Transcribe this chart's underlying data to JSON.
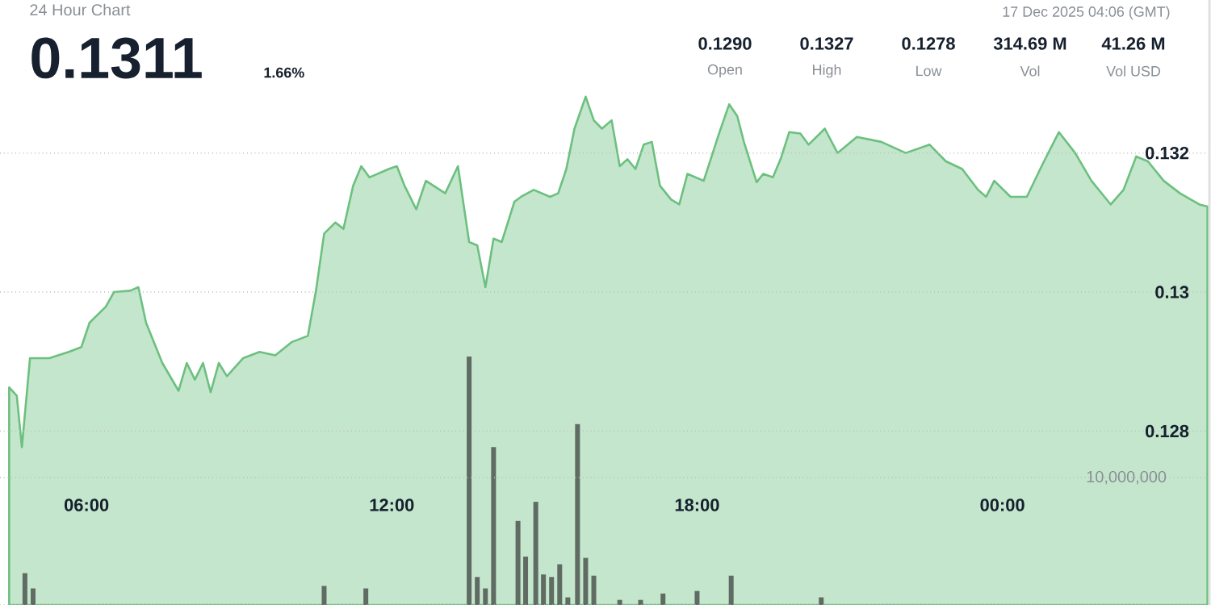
{
  "chart_data": {
    "type": "area",
    "title": "24 Hour Chart",
    "subtitle": "0.1311",
    "annotations": [
      "1.66%",
      "17 Dec 2025 04:06 (GMT)",
      "0.1290",
      "Open",
      "0.1327",
      "High",
      "0.1278",
      "Low",
      "314.69 M",
      "Vol",
      "41.26 M",
      "Vol USD"
    ],
    "xlim": [
      4.3,
      28.1
    ],
    "xticks": [
      {
        "value": 6,
        "label": "06:00"
      },
      {
        "value": 12,
        "label": "12:00"
      },
      {
        "value": 18,
        "label": "18:00"
      },
      {
        "value": 24,
        "label": "00:00"
      }
    ],
    "ylim": [
      0.1255,
      0.1342
    ],
    "yticks": [
      0.128,
      0.13,
      0.132
    ],
    "y2lim": [
      0,
      47500000
    ],
    "y2ticks": [
      {
        "value": 0,
        "label": null
      },
      {
        "value": 10000000,
        "label": "10,000,000"
      }
    ],
    "grid": "y",
    "series": [
      {
        "color": "#6cc07f",
        "x": [
          4.48,
          4.63,
          4.73,
          4.89,
          5.27,
          5.65,
          5.9,
          6.06,
          6.38,
          6.54,
          6.86,
          7.02,
          7.17,
          7.49,
          7.81,
          7.97,
          8.13,
          8.29,
          8.44,
          8.6,
          8.76,
          9.08,
          9.4,
          9.71,
          10.03,
          10.35,
          10.51,
          10.67,
          10.89,
          11.05,
          11.24,
          11.4,
          11.56,
          11.94,
          12.1,
          12.25,
          12.48,
          12.67,
          13.05,
          13.3,
          13.52,
          13.68,
          13.84,
          14.0,
          14.16,
          14.41,
          14.54,
          14.79,
          15.11,
          15.27,
          15.43,
          15.59,
          15.81,
          15.97,
          16.13,
          16.32,
          16.48,
          16.63,
          16.79,
          16.95,
          17.11,
          17.27,
          17.49,
          17.65,
          17.81,
          18.13,
          18.44,
          18.63,
          18.79,
          18.92,
          19.17,
          19.3,
          19.49,
          19.65,
          19.81,
          20.03,
          20.19,
          20.51,
          20.76,
          21.14,
          21.62,
          22.1,
          22.57,
          22.89,
          23.21,
          23.52,
          23.68,
          23.84,
          24.16,
          24.48,
          24.79,
          25.11,
          25.43,
          25.75,
          26.13,
          26.38,
          26.63,
          26.86,
          27.17,
          27.49,
          27.87,
          28.03
        ],
        "values": [
          0.12863,
          0.12851,
          0.12777,
          0.12905,
          0.12905,
          0.12914,
          0.12921,
          0.12956,
          0.12979,
          0.13,
          0.13002,
          0.13007,
          0.12956,
          0.12898,
          0.12858,
          0.12898,
          0.12874,
          0.12898,
          0.12856,
          0.12898,
          0.12879,
          0.12905,
          0.12914,
          0.12909,
          0.12928,
          0.12937,
          0.13002,
          0.13084,
          0.131,
          0.13091,
          0.13153,
          0.13181,
          0.13165,
          0.13177,
          0.13181,
          0.13153,
          0.13119,
          0.1316,
          0.13142,
          0.13181,
          0.13072,
          0.13067,
          0.13007,
          0.13077,
          0.13072,
          0.1313,
          0.13137,
          0.13147,
          0.13137,
          0.13142,
          0.13177,
          0.13235,
          0.13281,
          0.13247,
          0.13235,
          0.13247,
          0.13181,
          0.13191,
          0.13177,
          0.13212,
          0.13216,
          0.13153,
          0.13133,
          0.13126,
          0.1317,
          0.1316,
          0.1323,
          0.1327,
          0.13253,
          0.13216,
          0.13158,
          0.1317,
          0.13165,
          0.13193,
          0.1323,
          0.13228,
          0.13212,
          0.13235,
          0.132,
          0.13223,
          0.13216,
          0.132,
          0.13212,
          0.13188,
          0.13177,
          0.13147,
          0.13137,
          0.1316,
          0.13137,
          0.13137,
          0.13184,
          0.1323,
          0.132,
          0.1316,
          0.13126,
          0.13147,
          0.13195,
          0.13188,
          0.1316,
          0.13142,
          0.13126,
          0.13123
        ]
      },
      {
        "type": "bar",
        "axis": "y2",
        "color": "#5f6b63",
        "x": [
          4.79,
          4.95,
          10.67,
          11.49,
          13.52,
          13.68,
          13.84,
          14.0,
          14.48,
          14.63,
          14.83,
          14.98,
          15.14,
          15.3,
          15.46,
          15.65,
          15.81,
          15.97,
          16.48,
          16.89,
          17.33,
          18.0,
          18.67,
          20.44
        ],
        "values": [
          2500000,
          1300000,
          1500000,
          1300000,
          19500000,
          2200000,
          1300000,
          12400000,
          6600000,
          3800000,
          8100000,
          2400000,
          2200000,
          3200000,
          600000,
          14200000,
          3700000,
          2300000,
          400000,
          400000,
          900000,
          1100000,
          2300000,
          600000
        ]
      }
    ]
  }
}
